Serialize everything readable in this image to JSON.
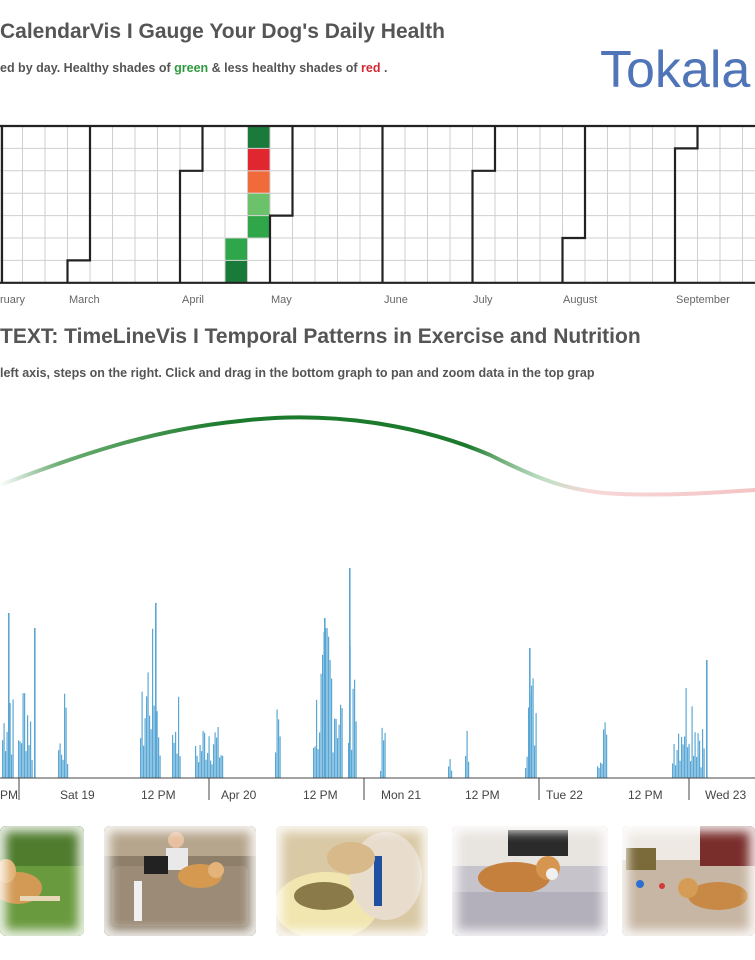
{
  "calendar": {
    "title": "CalendarVis I Gauge Your Dog's Daily Health",
    "subtitle_start": "ed by day. Healthy shades of ",
    "green_word": "green",
    "subtitle_mid": " & less healthy shades of ",
    "red_word": "red",
    "subtitle_end": " .",
    "months": [
      "ruary",
      "March",
      "April",
      "May",
      "June",
      "July",
      "August",
      "September"
    ],
    "day_cells": [
      {
        "week": "April-3",
        "day": 0,
        "level": "dark-green"
      },
      {
        "week": "April-3",
        "day": 1,
        "level": "red"
      },
      {
        "week": "April-3",
        "day": 2,
        "level": "orange"
      },
      {
        "week": "April-3",
        "day": 3,
        "level": "light-green"
      },
      {
        "week": "April-3",
        "day": 4,
        "level": "green"
      },
      {
        "week": "April-2",
        "day": 5,
        "level": "green"
      },
      {
        "week": "April-2",
        "day": 6,
        "level": "dark-green"
      }
    ],
    "colors": {
      "dark-green": "#1a7a3a",
      "green": "#2fa64a",
      "light-green": "#6cc26a",
      "orange": "#f06a3a",
      "red": "#e0262e"
    }
  },
  "brand": {
    "name": "Tokala"
  },
  "timeline": {
    "title": "TEXT: TimeLineVis I Temporal Patterns in Exercise and Nutrition",
    "subtitle": "left axis, steps on the right. Click and drag in the bottom graph to pan and zoom data in the top grap",
    "axis_ticks": [
      "PM",
      "Sat 19",
      "12 PM",
      "Apr 20",
      "12 PM",
      "Mon 21",
      "12 PM",
      "Tue 22",
      "12 PM",
      "Wed 23"
    ],
    "colors": {
      "bars": "#5aa7d6",
      "curve_good": "#1c7a2c",
      "curve_bad": "#e88a8a"
    }
  },
  "photos": [
    {
      "name": "dog-lying-on-grass",
      "bg": "#5c8a3a"
    },
    {
      "name": "boy-with-dog-on-sofa",
      "bg": "#8a7a66"
    },
    {
      "name": "dog-sniffing-plate",
      "bg": "#c9b48a"
    },
    {
      "name": "dog-on-bed",
      "bg": "#b9b6bd"
    },
    {
      "name": "dog-on-floor-with-toys",
      "bg": "#a88a6a"
    }
  ]
}
